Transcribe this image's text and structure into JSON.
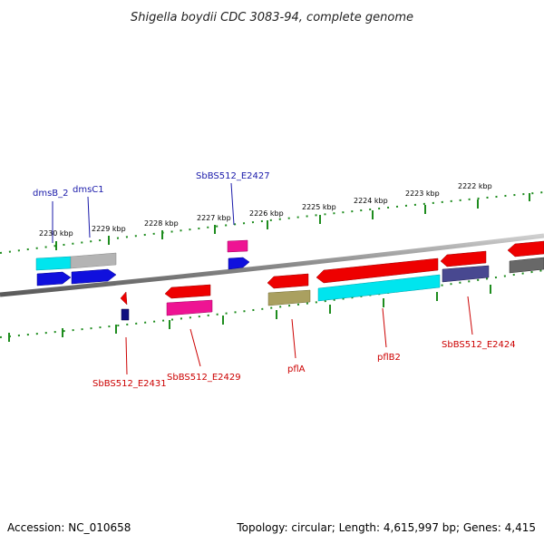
{
  "header": {
    "title": "Shigella boydii CDC 3083-94, complete genome"
  },
  "footer": {
    "accession": "Accession: NC_010658",
    "summary": "Topology: circular; Length: 4,615,997 bp; Genes: 4,415"
  },
  "ruler": {
    "unit": "kbp",
    "labels": [
      "2230 kbp",
      "2229 kbp",
      "2228 kbp",
      "2227 kbp",
      "2226 kbp",
      "2225 kbp",
      "2224 kbp",
      "2223 kbp",
      "2222 kbp"
    ]
  },
  "colors": {
    "backbone": "#888888",
    "tick": "#1e8c1e",
    "forward_label": "#1a1aaa",
    "reverse_label": "#cc0000",
    "gene_red": "#ee0000",
    "cds_blue": "#1010dd",
    "cds_cyan": "#00e5ee",
    "cds_grey": "#b4b4b4",
    "cds_pink": "#ee1493",
    "cds_olive": "#aaa060",
    "cds_navy": "#101080",
    "cds_slate": "#484890",
    "cds_dark": "#686868"
  },
  "genes": {
    "forward": [
      {
        "label": "dmsB_2"
      },
      {
        "label": "dmsC1"
      },
      {
        "label": "SbBS512_E2427"
      }
    ],
    "reverse": [
      {
        "label": "SbBS512_E2431"
      },
      {
        "label": "SbBS512_E2429"
      },
      {
        "label": "pflA"
      },
      {
        "label": "pflB2"
      },
      {
        "label": "SbBS512_E2424"
      }
    ]
  }
}
